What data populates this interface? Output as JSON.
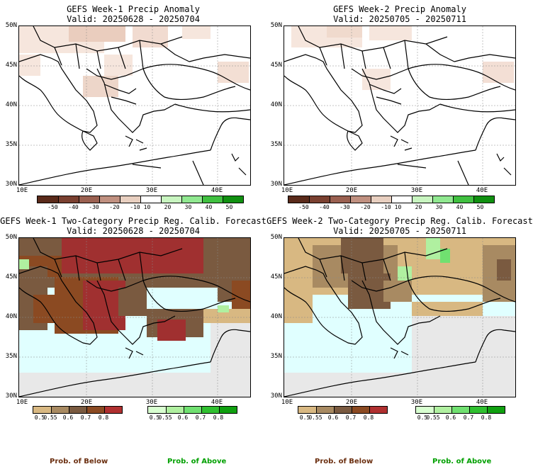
{
  "panels": [
    {
      "title": "GEFS Week-1 Precip Anomaly",
      "valid": "Valid: 20250628 - 20250704"
    },
    {
      "title": "GEFS Week-2 Precip Anomaly",
      "valid": "Valid: 20250705 - 20250711"
    },
    {
      "title": "GEFS Week-1 Two-Category Precip Reg. Calib. Forecast",
      "valid": "Valid: 20250628 - 20250704"
    },
    {
      "title": "GEFS Week-2 Two-Category Precip Reg. Calib. Forecast",
      "valid": "Valid: 20250705 - 20250711"
    }
  ],
  "lat_labels": [
    "50N",
    "45N",
    "40N",
    "35N",
    "30N"
  ],
  "lon_labels": [
    "10E",
    "20E",
    "30E",
    "40E"
  ],
  "anomaly_colorbar": {
    "ticks": [
      "-50",
      "-40",
      "-30",
      "-20",
      "-10",
      "10",
      "20",
      "30",
      "40",
      "50"
    ],
    "colors": [
      "#5a2a1a",
      "#7a4030",
      "#9a6050",
      "#c09080",
      "#e8cfc0",
      "#ffffff",
      "#c8f5c0",
      "#90e890",
      "#40c040",
      "#109010"
    ]
  },
  "below_colorbar": {
    "ticks": [
      "0.5",
      "0.55",
      "0.6",
      "0.7",
      "0.8"
    ],
    "colors": [
      "#d8b882",
      "#a88a62",
      "#7a5a40",
      "#8b4a22",
      "#b03030"
    ]
  },
  "above_colorbar": {
    "ticks": [
      "0.5",
      "0.55",
      "0.6",
      "0.7",
      "0.8"
    ],
    "colors": [
      "#d8ffd0",
      "#b0f0a0",
      "#70e070",
      "#30c030",
      "#10a010"
    ]
  },
  "legend": {
    "below_label": "Prob. of Below",
    "above_label": "Prob. of Above",
    "below_color": "#6b2f10",
    "above_color": "#00a000"
  },
  "colors": {
    "sea_prob": "#e0ffff",
    "no_data": "#e8e8e8"
  }
}
